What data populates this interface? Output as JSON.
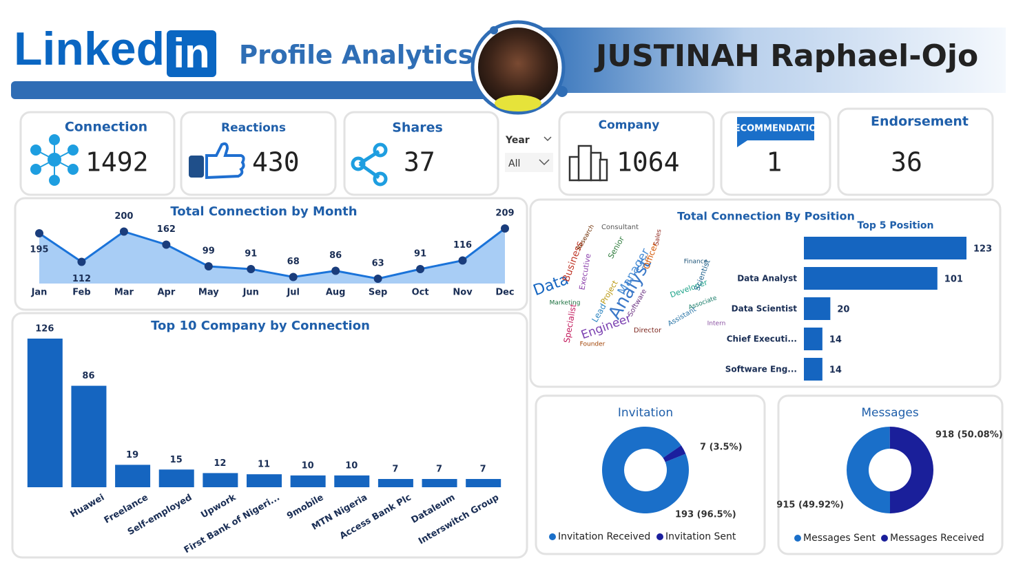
{
  "header": {
    "logo": "Linked",
    "logo_box": "in",
    "title": "Profile Analytics",
    "profile_name": "JUSTINAH Raphael-Ojo"
  },
  "kpis": [
    {
      "label": "Connection",
      "value": 1492
    },
    {
      "label": "Reactions",
      "value": 430
    },
    {
      "label": "Shares",
      "value": 37
    },
    {
      "label": "Company",
      "value": 1064
    },
    {
      "label": "RECOMMENDATION",
      "value": 1
    },
    {
      "label": "Endorsement",
      "value": 36
    }
  ],
  "filter": {
    "label": "Year",
    "value": "All"
  },
  "word_cloud": {
    "title": "Total Connection By Position",
    "words": [
      "Data",
      "Analyst",
      "Engineer",
      "Manager",
      "Business",
      "Officer",
      "Senior",
      "Consultant",
      "Specialist",
      "Executive",
      "Lead",
      "Developer",
      "Project",
      "Software",
      "Scientist",
      "Director",
      "Assistant",
      "Associate",
      "Intern",
      "Founder",
      "Marketing",
      "Sales",
      "Finance",
      "Research"
    ]
  },
  "chart_data": [
    {
      "type": "line",
      "title": "Total Connection by Month",
      "categories": [
        "Jan",
        "Feb",
        "Mar",
        "Apr",
        "May",
        "Jun",
        "Jul",
        "Aug",
        "Sep",
        "Oct",
        "Nov",
        "Dec"
      ],
      "values": [
        195,
        112,
        200,
        162,
        99,
        91,
        68,
        86,
        63,
        91,
        116,
        209
      ],
      "color": "#1a73d9",
      "fill": "#a8cdf5"
    },
    {
      "type": "bar",
      "title": "Top 10 Company by Connection",
      "categories": [
        null,
        "Huawei",
        "Freelance",
        "Self-employed",
        "Upwork",
        "First Bank of Nigeri...",
        "9mobile",
        "MTN Nigeria",
        "Access Bank Plc",
        "Dataleum",
        "Interswitch Group"
      ],
      "values": [
        126,
        86,
        19,
        15,
        12,
        11,
        10,
        10,
        7,
        7,
        7
      ],
      "color": "#1565c0"
    },
    {
      "type": "hbar",
      "title": "Top 5 Position",
      "categories": [
        null,
        "Data Analyst",
        "Data Scientist",
        "Chief Executi...",
        "Software Eng..."
      ],
      "values": [
        123,
        101,
        20,
        14,
        14
      ],
      "color": "#1565c0"
    },
    {
      "type": "donut",
      "title": "Invitation",
      "categories": [
        "Invitation Received",
        "Invitation Sent"
      ],
      "values": [
        193,
        7
      ],
      "value_labels": [
        "193 (96.5%)",
        "7 (3.5%)"
      ],
      "colors": [
        "#1a6fc9",
        "#1b1f9e"
      ]
    },
    {
      "type": "donut",
      "title": "Messages",
      "categories": [
        "Messages Sent",
        "Messages Received"
      ],
      "values": [
        915,
        918
      ],
      "value_labels": [
        "915 (49.92%)",
        "918 (50.08%)"
      ],
      "colors": [
        "#1a6fc9",
        "#1a1f9a"
      ]
    }
  ]
}
